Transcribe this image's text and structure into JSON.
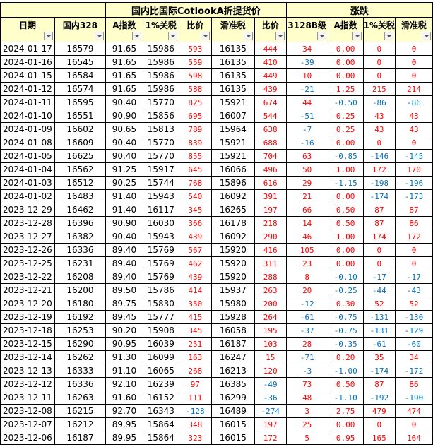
{
  "header": {
    "group_blank": "",
    "group_main": "国内比国际CotlookA折提货价",
    "group_change": "涨跌",
    "columns": [
      "日期",
      "国内328",
      "A指数",
      "1%关税",
      "比价",
      "滑准税",
      "比价",
      "3128B级",
      "A指数",
      "1%关税",
      "滑准税"
    ]
  },
  "colors": {
    "header_bg": "#ffffcc",
    "positive": "#ff0000",
    "negative": "#0070c0"
  },
  "rows": [
    [
      "2024-01-17",
      "16579",
      "91.65",
      "15986",
      "593",
      "16135",
      "444",
      "34",
      "0.00",
      "0",
      "0"
    ],
    [
      "2024-01-16",
      "16545",
      "91.65",
      "15986",
      "559",
      "16135",
      "410",
      "-39",
      "0.00",
      "0",
      "0"
    ],
    [
      "2024-01-15",
      "16584",
      "91.65",
      "15986",
      "598",
      "16135",
      "449",
      "10",
      "0.00",
      "0",
      "0"
    ],
    [
      "2024-01-12",
      "16574",
      "91.65",
      "15986",
      "588",
      "16135",
      "439",
      "-21",
      "1.25",
      "215",
      "214"
    ],
    [
      "2024-01-11",
      "16595",
      "90.40",
      "15770",
      "825",
      "15921",
      "674",
      "44",
      "-0.50",
      "-86",
      "-86"
    ],
    [
      "2024-01-10",
      "16551",
      "90.90",
      "15856",
      "695",
      "16007",
      "544",
      "-51",
      "0.25",
      "43",
      "43"
    ],
    [
      "2024-01-09",
      "16602",
      "90.65",
      "15813",
      "789",
      "15964",
      "638",
      "-7",
      "0.25",
      "43",
      "43"
    ],
    [
      "2024-01-08",
      "16609",
      "90.40",
      "15770",
      "839",
      "15921",
      "688",
      "-16",
      "0.00",
      "0",
      "0"
    ],
    [
      "2024-01-05",
      "16625",
      "90.40",
      "15770",
      "855",
      "15921",
      "704",
      "63",
      "-0.85",
      "-146",
      "-145"
    ],
    [
      "2024-01-04",
      "16562",
      "91.25",
      "15917",
      "645",
      "16066",
      "496",
      "50",
      "1.00",
      "172",
      "170"
    ],
    [
      "2024-01-03",
      "16512",
      "90.25",
      "15744",
      "768",
      "15896",
      "616",
      "29",
      "-1.15",
      "-198",
      "-196"
    ],
    [
      "2024-01-02",
      "16483",
      "91.40",
      "15943",
      "540",
      "16092",
      "391",
      "21",
      "0.00",
      "-174",
      "-173"
    ],
    [
      "2023-12-29",
      "16462",
      "91.40",
      "16117",
      "345",
      "16265",
      "197",
      "66",
      "0.50",
      "87",
      "87"
    ],
    [
      "2023-12-28",
      "16396",
      "90.90",
      "16030",
      "366",
      "16178",
      "218",
      "14",
      "0.50",
      "87",
      "86"
    ],
    [
      "2023-12-27",
      "16382",
      "90.40",
      "15943",
      "439",
      "16092",
      "290",
      "46",
      "1.00",
      "174",
      "172"
    ],
    [
      "2023-12-26",
      "16336",
      "89.40",
      "15769",
      "567",
      "15920",
      "416",
      "105",
      "0.00",
      "0",
      "0"
    ],
    [
      "2023-12-25",
      "16231",
      "89.40",
      "15769",
      "462",
      "15920",
      "311",
      "23",
      "0.00",
      "0",
      "0"
    ],
    [
      "2023-12-22",
      "16208",
      "89.40",
      "15769",
      "439",
      "15920",
      "288",
      "8",
      "-0.10",
      "-17",
      "-17"
    ],
    [
      "2023-12-21",
      "16200",
      "89.50",
      "15786",
      "414",
      "15937",
      "263",
      "20",
      "-0.25",
      "-44",
      "-43"
    ],
    [
      "2023-12-20",
      "16180",
      "89.75",
      "15830",
      "350",
      "15980",
      "200",
      "-12",
      "0.30",
      "52",
      "52"
    ],
    [
      "2023-12-19",
      "16192",
      "89.45",
      "15777",
      "415",
      "15928",
      "264",
      "-61",
      "-0.75",
      "-131",
      "-130"
    ],
    [
      "2023-12-18",
      "16253",
      "90.20",
      "15908",
      "345",
      "16058",
      "195",
      "-37",
      "-0.75",
      "-131",
      "-129"
    ],
    [
      "2023-12-15",
      "16290",
      "90.95",
      "16039",
      "251",
      "16187",
      "103",
      "28",
      "-0.35",
      "-61",
      "-60"
    ],
    [
      "2023-12-14",
      "16262",
      "91.30",
      "16099",
      "163",
      "16247",
      "15",
      "-71",
      "0.20",
      "35",
      "34"
    ],
    [
      "2023-12-13",
      "16333",
      "91.10",
      "16065",
      "268",
      "16213",
      "120",
      "-3",
      "-1.00",
      "-174",
      "-172"
    ],
    [
      "2023-12-12",
      "16336",
      "92.10",
      "16239",
      "97",
      "16385",
      "-49",
      "73",
      "0.50",
      "87",
      "86"
    ],
    [
      "2023-12-11",
      "16263",
      "91.60",
      "16152",
      "111",
      "16299",
      "-36",
      "48",
      "-1.10",
      "-192",
      "-190"
    ],
    [
      "2023-12-08",
      "16215",
      "92.70",
      "16343",
      "-128",
      "16489",
      "-274",
      "3",
      "2.75",
      "479",
      "474"
    ],
    [
      "2023-12-07",
      "16212",
      "89.95",
      "15864",
      "348",
      "16015",
      "197",
      "25",
      "0.00",
      "0",
      "0"
    ],
    [
      "2023-12-06",
      "16187",
      "89.95",
      "15864",
      "323",
      "16015",
      "172",
      "5",
      "0.95",
      "165",
      "164"
    ]
  ]
}
